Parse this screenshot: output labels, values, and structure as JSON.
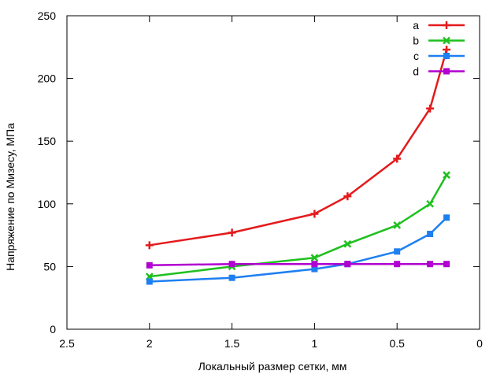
{
  "chart_data": {
    "type": "line",
    "xlabel": "Локальный размер сетки, мм",
    "ylabel": "Напряжение по Мизесу, МПа",
    "xlim": [
      2.5,
      0
    ],
    "ylim": [
      0,
      250
    ],
    "x_reversed": true,
    "xticks": [
      2.5,
      2,
      1.5,
      1,
      0.5,
      0
    ],
    "xtick_labels": [
      "2.5",
      "2",
      "1.5",
      "1",
      "0.5",
      "0"
    ],
    "yticks": [
      0,
      50,
      100,
      150,
      200,
      250
    ],
    "ytick_labels": [
      "0",
      "50",
      "100",
      "150",
      "200",
      "250"
    ],
    "legend_position": "top-right",
    "grid": false,
    "series": [
      {
        "name": "a",
        "color": "#e41a1c",
        "marker": "plus",
        "x": [
          2,
          1.5,
          1,
          0.8,
          0.5,
          0.3,
          0.2
        ],
        "y": [
          67,
          77,
          92,
          106,
          136,
          176,
          223
        ]
      },
      {
        "name": "b",
        "color": "#1ec01e",
        "marker": "cross",
        "x": [
          2,
          1.5,
          1,
          0.8,
          0.5,
          0.3,
          0.2
        ],
        "y": [
          42,
          50,
          57,
          68,
          83,
          100,
          123
        ]
      },
      {
        "name": "c",
        "color": "#1e7ff0",
        "marker": "square",
        "x": [
          2,
          1.5,
          1,
          0.8,
          0.5,
          0.3,
          0.2
        ],
        "y": [
          38,
          41,
          48,
          52,
          62,
          76,
          89
        ]
      },
      {
        "name": "d",
        "color": "#b000d0",
        "marker": "square",
        "x": [
          2,
          1.5,
          1,
          0.8,
          0.5,
          0.3,
          0.2
        ],
        "y": [
          51,
          52,
          52,
          52,
          52,
          52,
          52
        ]
      }
    ]
  }
}
